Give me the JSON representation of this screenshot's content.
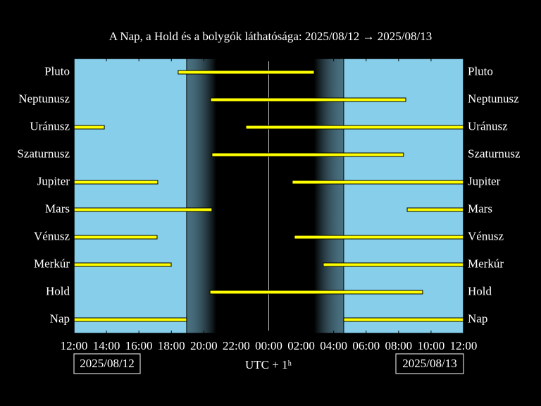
{
  "chart_data": {
    "type": "gantt",
    "title": "A Nap, a Hold és a bolygók láthatósága: 2025/08/12 → 2025/08/13",
    "xlabel": "UTC + 1ʰ",
    "date_left": "2025/08/12",
    "date_right": "2025/08/13",
    "xlim": [
      0,
      24
    ],
    "xticks": [
      {
        "value": 0,
        "label": "12:00"
      },
      {
        "value": 2,
        "label": "14:00"
      },
      {
        "value": 4,
        "label": "16:00"
      },
      {
        "value": 6,
        "label": "18:00"
      },
      {
        "value": 8,
        "label": "20:00"
      },
      {
        "value": 10,
        "label": "22:00"
      },
      {
        "value": 12,
        "label": "00:00"
      },
      {
        "value": 14,
        "label": "02:00"
      },
      {
        "value": 16,
        "label": "04:00"
      },
      {
        "value": 18,
        "label": "06:00"
      },
      {
        "value": 20,
        "label": "08:00"
      },
      {
        "value": 22,
        "label": "10:00"
      },
      {
        "value": 24,
        "label": "12:00"
      }
    ],
    "color": "#ffff00",
    "background": "#87ceeb",
    "rows": [
      {
        "name": "Pluto",
        "intervals": [
          [
            6.42,
            14.8
          ]
        ]
      },
      {
        "name": "Neptunusz",
        "intervals": [
          [
            8.42,
            20.44
          ]
        ]
      },
      {
        "name": "Uránusz",
        "intervals": [
          [
            0,
            1.87
          ],
          [
            10.59,
            24
          ]
        ]
      },
      {
        "name": "Szaturnusz",
        "intervals": [
          [
            8.5,
            20.3
          ]
        ]
      },
      {
        "name": "Jupiter",
        "intervals": [
          [
            0,
            5.16
          ],
          [
            13.45,
            24
          ]
        ]
      },
      {
        "name": "Mars",
        "intervals": [
          [
            0,
            8.5
          ],
          [
            20.53,
            24
          ]
        ]
      },
      {
        "name": "Vénusz",
        "intervals": [
          [
            0,
            5.12
          ],
          [
            13.58,
            24
          ]
        ]
      },
      {
        "name": "Merkúr",
        "intervals": [
          [
            0,
            5.99
          ],
          [
            15.36,
            24
          ]
        ]
      },
      {
        "name": "Hold",
        "intervals": [
          [
            8.38,
            21.48
          ]
        ]
      },
      {
        "name": "Nap",
        "intervals": [
          [
            0,
            6.94
          ],
          [
            16.62,
            24
          ]
        ]
      }
    ]
  }
}
